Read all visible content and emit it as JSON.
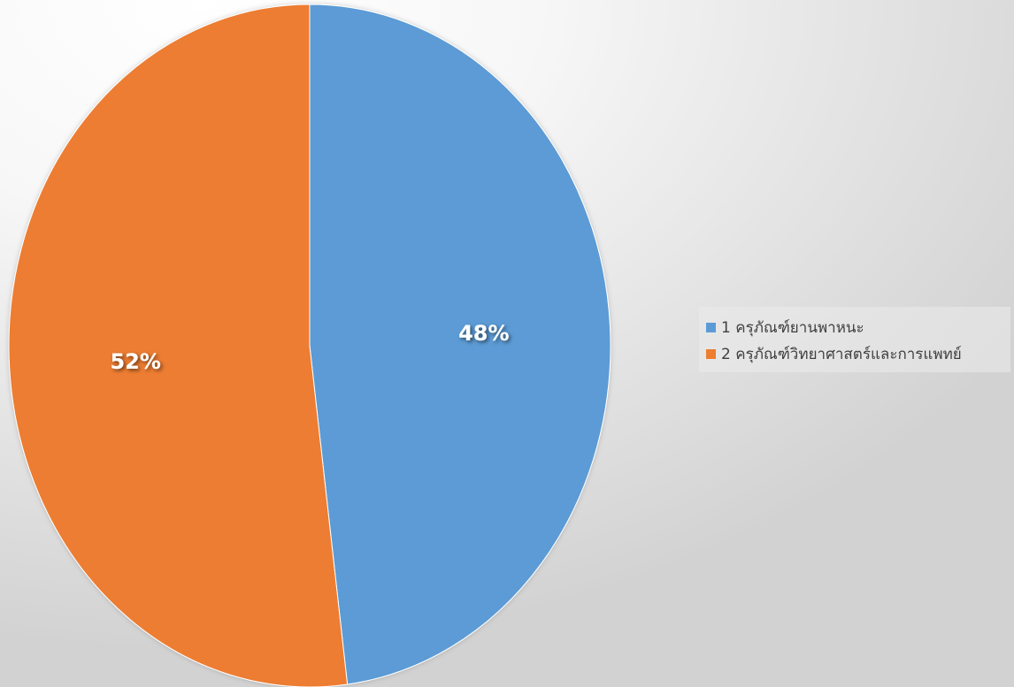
{
  "chart_data": {
    "type": "pie",
    "title": "",
    "categories": [
      "1 ครุภัณฑ์ยานพาหนะ",
      "2 ครุภัณฑ์วิทยาศาสตร์และการแพทย์"
    ],
    "values": [
      48,
      52
    ],
    "value_labels": [
      "48%",
      "52%"
    ],
    "colors": [
      "#5b9bd5",
      "#ed7d31"
    ],
    "start_angle_deg": 0,
    "direction": "clockwise",
    "legend_position": "right"
  }
}
